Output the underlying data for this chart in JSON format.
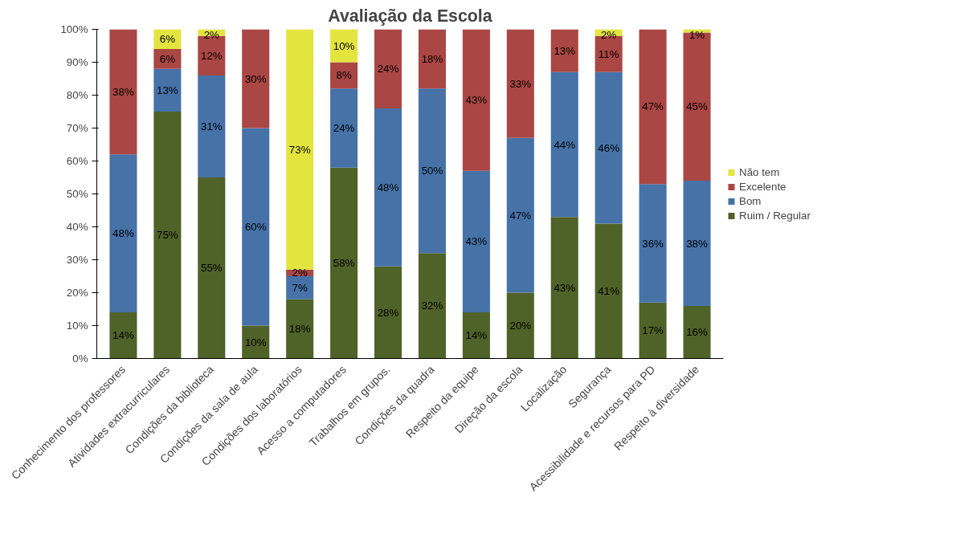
{
  "chart_data": {
    "type": "bar",
    "title": "Avaliação da Escola",
    "stacked": true,
    "categories": [
      "Conhecimento dos professores",
      "Atividades extracurriculares",
      "Condições da biblioteca",
      "Condições da sala de aula",
      "Condições dos laboratórios",
      "Acesso a computadores",
      "Trabalhos em grupos.",
      "Condições da quadra",
      "Respeito da equipe",
      "Direção da escola",
      "Localização",
      "Segurança",
      "Acessibilidade e recursos para PD",
      "Respeito à diversidade"
    ],
    "series": [
      {
        "name": "Ruim / Regular",
        "color": "#4f6228",
        "values": [
          14,
          75,
          55,
          10,
          18,
          58,
          28,
          32,
          14,
          20,
          43,
          41,
          17,
          16
        ],
        "value_labels": [
          "14%",
          "75%",
          "55%",
          "10%",
          "18%",
          "58%",
          "28%",
          "32%",
          "14%",
          "20%",
          "43%",
          "41%",
          "17%",
          "16%"
        ]
      },
      {
        "name": "Bom",
        "color": "#4672a8",
        "values": [
          48,
          13,
          31,
          60,
          7,
          24,
          48,
          50,
          43,
          47,
          44,
          46,
          36,
          38
        ],
        "value_labels": [
          "48%",
          "13%",
          "31%",
          "60%",
          "7%",
          "24%",
          "48%",
          "50%",
          "43%",
          "47%",
          "44%",
          "46%",
          "36%",
          "38%"
        ]
      },
      {
        "name": "Excelente",
        "color": "#aa4643",
        "values": [
          38,
          6,
          12,
          30,
          2,
          8,
          24,
          18,
          43,
          33,
          13,
          11,
          47,
          45
        ],
        "value_labels": [
          "38%",
          "6%",
          "12%",
          "30%",
          "2%",
          "8%",
          "24%",
          "18%",
          "43%",
          "33%",
          "13%",
          "11%",
          "47%",
          "45%"
        ]
      },
      {
        "name": "Não tem",
        "color": "#e4e43f",
        "values": [
          null,
          6,
          2,
          null,
          73,
          10,
          null,
          null,
          null,
          null,
          null,
          2,
          null,
          1
        ],
        "value_labels": [
          null,
          "6%",
          "2%",
          null,
          "73%",
          "10%",
          null,
          null,
          null,
          null,
          null,
          "2%",
          null,
          "1%"
        ]
      }
    ],
    "ylim": [
      0,
      100
    ],
    "yticks": [
      {
        "value": 0,
        "label": "0%"
      },
      {
        "value": 10,
        "label": "10%"
      },
      {
        "value": 20,
        "label": "20%"
      },
      {
        "value": 30,
        "label": "30%"
      },
      {
        "value": 40,
        "label": "40%"
      },
      {
        "value": 50,
        "label": "50%"
      },
      {
        "value": 60,
        "label": "60%"
      },
      {
        "value": 70,
        "label": "70%"
      },
      {
        "value": 80,
        "label": "80%"
      },
      {
        "value": 90,
        "label": "90%"
      },
      {
        "value": 100,
        "label": "100%"
      }
    ],
    "grid": false,
    "legend": "right"
  }
}
